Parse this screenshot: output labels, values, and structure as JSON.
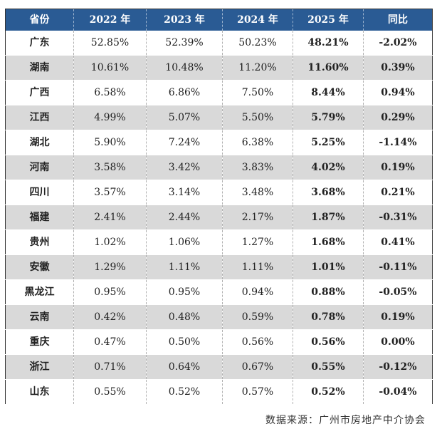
{
  "table": {
    "headers": [
      "省份",
      "2022 年",
      "2023 年",
      "2024 年",
      "2025 年",
      "同比"
    ],
    "rows": [
      [
        "广东",
        "52.85%",
        "52.39%",
        "50.23%",
        "48.21%",
        "-2.02%"
      ],
      [
        "湖南",
        "10.61%",
        "10.48%",
        "11.20%",
        "11.60%",
        "0.39%"
      ],
      [
        "广西",
        "6.58%",
        "6.86%",
        "7.50%",
        "8.44%",
        "0.94%"
      ],
      [
        "江西",
        "4.99%",
        "5.07%",
        "5.50%",
        "5.79%",
        "0.29%"
      ],
      [
        "湖北",
        "5.90%",
        "7.24%",
        "6.38%",
        "5.25%",
        "-1.14%"
      ],
      [
        "河南",
        "3.58%",
        "3.42%",
        "3.83%",
        "4.02%",
        "0.19%"
      ],
      [
        "四川",
        "3.57%",
        "3.14%",
        "3.48%",
        "3.68%",
        "0.21%"
      ],
      [
        "福建",
        "2.41%",
        "2.44%",
        "2.17%",
        "1.87%",
        "-0.31%"
      ],
      [
        "贵州",
        "1.02%",
        "1.06%",
        "1.27%",
        "1.68%",
        "0.41%"
      ],
      [
        "安徽",
        "1.29%",
        "1.11%",
        "1.11%",
        "1.01%",
        "-0.11%"
      ],
      [
        "黑龙江",
        "0.95%",
        "0.95%",
        "0.94%",
        "0.88%",
        "-0.05%"
      ],
      [
        "云南",
        "0.42%",
        "0.48%",
        "0.59%",
        "0.78%",
        "0.19%"
      ],
      [
        "重庆",
        "0.47%",
        "0.50%",
        "0.56%",
        "0.56%",
        "0.00%"
      ],
      [
        "浙江",
        "0.71%",
        "0.64%",
        "0.67%",
        "0.55%",
        "-0.12%"
      ],
      [
        "山东",
        "0.55%",
        "0.52%",
        "0.57%",
        "0.52%",
        "-0.04%"
      ]
    ]
  },
  "source": "数据来源：广州市房地产中介协会",
  "watermark": "广州市房地产中介协会",
  "colors": {
    "header_bg": "#2a5b94",
    "alt_row": "#d9d9d9"
  }
}
